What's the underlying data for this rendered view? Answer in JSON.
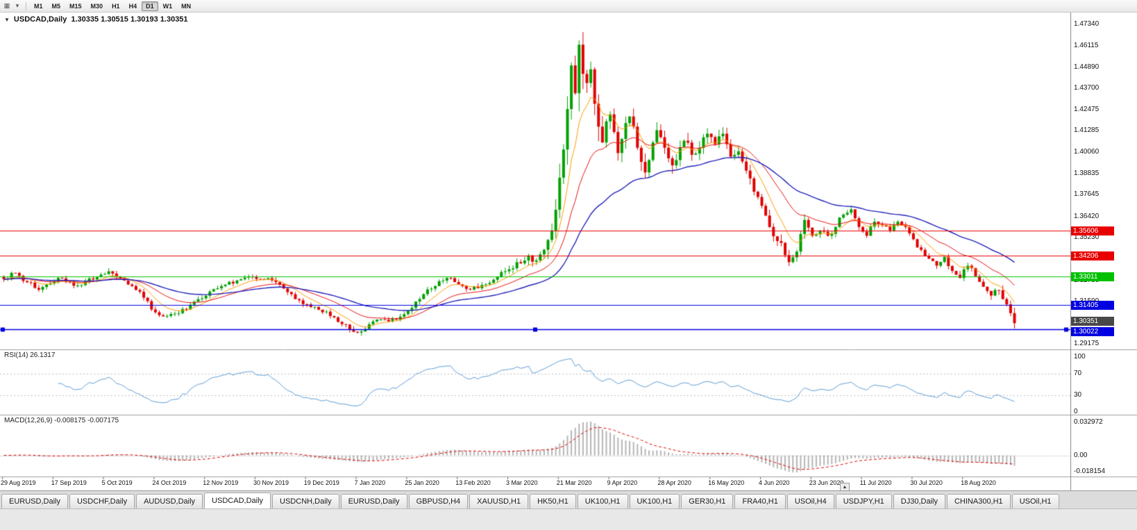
{
  "icons": {
    "chart": "▦",
    "dropdown": "▾",
    "scroll_up": "▲",
    "symbol_caret": "▼"
  },
  "toolbar": {
    "timeframes": [
      "M1",
      "M5",
      "M15",
      "M30",
      "H1",
      "H4",
      "D1",
      "W1",
      "MN"
    ],
    "active_timeframe": "D1"
  },
  "chart_header": {
    "symbol_label": "USDCAD,Daily",
    "ohlc": "1.30335 1.30515 1.30193 1.30351"
  },
  "tabs": {
    "items": [
      "EURUSD,Daily",
      "USDCHF,Daily",
      "AUDUSD,Daily",
      "USDCAD,Daily",
      "USDCNH,Daily",
      "EURUSD,Daily",
      "GBPUSD,H4",
      "XAUUSD,H1",
      "HK50,H1",
      "UK100,H1",
      "UK100,H1",
      "GER30,H1",
      "FRA40,H1",
      "USOil,H4",
      "USDJPY,H1",
      "DJ30,Daily",
      "CHINA300,H1",
      "USOil,H1"
    ],
    "active_index": 3
  },
  "chart_data": {
    "type": "candlestick",
    "symbol": "USDCAD",
    "timeframe": "Daily",
    "bar_count": 261,
    "bar_step": 5.6,
    "price_range": [
      1.289,
      1.4785
    ],
    "current_price": 1.30351,
    "current_price_label": "1.30351",
    "y_axis_ticks": [
      "1.47340",
      "1.46115",
      "1.44890",
      "1.43700",
      "1.42475",
      "1.41285",
      "1.40060",
      "1.38835",
      "1.37645",
      "1.36420",
      "1.35230",
      "1.34005",
      "1.32780",
      "1.31590",
      "1.29175"
    ],
    "x_labels": [
      "29 Aug 2019",
      "17 Sep 2019",
      "5 Oct 2019",
      "24 Oct 2019",
      "12 Nov 2019",
      "30 Nov 2019",
      "19 Dec 2019",
      "7 Jan 2020",
      "25 Jan 2020",
      "13 Feb 2020",
      "3 Mar 2020",
      "21 Mar 2020",
      "9 Apr 2020",
      "28 Apr 2020",
      "16 May 2020",
      "4 Jun 2020",
      "23 Jun 2020",
      "11 Jul 2020",
      "30 Jul 2020",
      "18 Aug 2020"
    ],
    "x_label_indices": [
      0,
      13,
      26,
      39,
      52,
      65,
      78,
      91,
      104,
      117,
      130,
      143,
      156,
      169,
      182,
      195,
      208,
      221,
      234,
      247
    ],
    "horizontal_lines": [
      {
        "price": 1.35606,
        "label": "1.35606",
        "color": "#e80000",
        "selected": false
      },
      {
        "price": 1.34206,
        "label": "1.34206",
        "color": "#e80000",
        "selected": false
      },
      {
        "price": 1.33011,
        "label": "1.33011",
        "color": "#00c000",
        "selected": false
      },
      {
        "price": 1.31405,
        "label": "1.31405",
        "color": "#0000e0",
        "selected": false
      },
      {
        "price": 1.30022,
        "label": "1.30022",
        "color": "#0000e0",
        "selected": true
      }
    ],
    "close_anchors": [
      [
        0,
        1.3285
      ],
      [
        3,
        1.332
      ],
      [
        6,
        1.3268
      ],
      [
        9,
        1.3225
      ],
      [
        12,
        1.3262
      ],
      [
        15,
        1.329
      ],
      [
        18,
        1.3248
      ],
      [
        21,
        1.3272
      ],
      [
        24,
        1.3298
      ],
      [
        27,
        1.333
      ],
      [
        30,
        1.329
      ],
      [
        33,
        1.3246
      ],
      [
        36,
        1.318
      ],
      [
        39,
        1.3097
      ],
      [
        42,
        1.3076
      ],
      [
        45,
        1.3092
      ],
      [
        48,
        1.314
      ],
      [
        51,
        1.3176
      ],
      [
        54,
        1.3228
      ],
      [
        57,
        1.3254
      ],
      [
        60,
        1.3278
      ],
      [
        63,
        1.33
      ],
      [
        66,
        1.3286
      ],
      [
        69,
        1.3278
      ],
      [
        72,
        1.3232
      ],
      [
        75,
        1.3172
      ],
      [
        78,
        1.3142
      ],
      [
        81,
        1.3112
      ],
      [
        84,
        1.3076
      ],
      [
        87,
        1.303
      ],
      [
        90,
        1.2986
      ],
      [
        93,
        1.3002
      ],
      [
        96,
        1.3056
      ],
      [
        99,
        1.3046
      ],
      [
        102,
        1.3072
      ],
      [
        105,
        1.3122
      ],
      [
        108,
        1.32
      ],
      [
        111,
        1.3246
      ],
      [
        114,
        1.3292
      ],
      [
        117,
        1.3256
      ],
      [
        120,
        1.3226
      ],
      [
        123,
        1.3252
      ],
      [
        126,
        1.3282
      ],
      [
        129,
        1.333
      ],
      [
        132,
        1.3382
      ],
      [
        135,
        1.342
      ],
      [
        137,
        1.3392
      ],
      [
        139,
        1.3452
      ],
      [
        141,
        1.3562
      ],
      [
        143,
        1.3862
      ],
      [
        144,
        1.4022
      ],
      [
        145,
        1.4252
      ],
      [
        146,
        1.45
      ],
      [
        147,
        1.4342
      ],
      [
        148,
        1.4618
      ],
      [
        149,
        1.4452
      ],
      [
        150,
        1.44
      ],
      [
        151,
        1.4478
      ],
      [
        152,
        1.4282
      ],
      [
        153,
        1.4152
      ],
      [
        154,
        1.4062
      ],
      [
        155,
        1.4182
      ],
      [
        156,
        1.4222
      ],
      [
        157,
        1.4122
      ],
      [
        158,
        1.4002
      ],
      [
        159,
        1.4082
      ],
      [
        160,
        1.4172
      ],
      [
        161,
        1.421
      ],
      [
        162,
        1.4152
      ],
      [
        163,
        1.4032
      ],
      [
        164,
        1.3952
      ],
      [
        165,
        1.3892
      ],
      [
        166,
        1.3962
      ],
      [
        167,
        1.4062
      ],
      [
        168,
        1.4132
      ],
      [
        169,
        1.4092
      ],
      [
        170,
        1.4032
      ],
      [
        171,
        1.3972
      ],
      [
        172,
        1.3932
      ],
      [
        173,
        1.3962
      ],
      [
        175,
        1.4072
      ],
      [
        177,
        1.3992
      ],
      [
        179,
        1.4032
      ],
      [
        181,
        1.4112
      ],
      [
        183,
        1.4052
      ],
      [
        185,
        1.4112
      ],
      [
        187,
        1.3982
      ],
      [
        189,
        1.4012
      ],
      [
        191,
        1.3902
      ],
      [
        193,
        1.3782
      ],
      [
        195,
        1.3702
      ],
      [
        197,
        1.3582
      ],
      [
        199,
        1.3502
      ],
      [
        201,
        1.3422
      ],
      [
        202,
        1.3382
      ],
      [
        204,
        1.3442
      ],
      [
        205,
        1.3542
      ],
      [
        206,
        1.3622
      ],
      [
        208,
        1.3532
      ],
      [
        210,
        1.3562
      ],
      [
        212,
        1.3532
      ],
      [
        214,
        1.3582
      ],
      [
        216,
        1.3652
      ],
      [
        218,
        1.3682
      ],
      [
        220,
        1.3582
      ],
      [
        222,
        1.3532
      ],
      [
        224,
        1.3612
      ],
      [
        226,
        1.3592
      ],
      [
        228,
        1.3562
      ],
      [
        230,
        1.3612
      ],
      [
        232,
        1.3582
      ],
      [
        234,
        1.3512
      ],
      [
        236,
        1.3452
      ],
      [
        238,
        1.3402
      ],
      [
        240,
        1.3362
      ],
      [
        242,
        1.3412
      ],
      [
        244,
        1.3332
      ],
      [
        246,
        1.3292
      ],
      [
        248,
        1.3362
      ],
      [
        250,
        1.3302
      ],
      [
        252,
        1.3242
      ],
      [
        254,
        1.3192
      ],
      [
        256,
        1.3222
      ],
      [
        257,
        1.3172
      ],
      [
        258,
        1.3142
      ],
      [
        259,
        1.3092
      ],
      [
        260,
        1.30351
      ]
    ],
    "volatility_anchors": [
      [
        0,
        0.0035
      ],
      [
        60,
        0.003
      ],
      [
        90,
        0.0034
      ],
      [
        120,
        0.0032
      ],
      [
        136,
        0.0055
      ],
      [
        141,
        0.011
      ],
      [
        145,
        0.019
      ],
      [
        150,
        0.019
      ],
      [
        154,
        0.014
      ],
      [
        159,
        0.011
      ],
      [
        166,
        0.0095
      ],
      [
        174,
        0.0085
      ],
      [
        184,
        0.007
      ],
      [
        194,
        0.0065
      ],
      [
        202,
        0.0075
      ],
      [
        207,
        0.006
      ],
      [
        212,
        0.0042
      ],
      [
        222,
        0.004
      ],
      [
        232,
        0.004
      ],
      [
        242,
        0.0038
      ],
      [
        250,
        0.0042
      ],
      [
        256,
        0.0048
      ],
      [
        260,
        0.0068
      ]
    ],
    "moving_averages": [
      {
        "name": "fast-ma",
        "period": 8,
        "color": "#ff9900"
      },
      {
        "name": "medium-ma",
        "period": 20,
        "color": "#e81010"
      },
      {
        "name": "slow-ma",
        "period": 45,
        "color": "#2222bb"
      }
    ],
    "indicators": {
      "rsi": {
        "label": "RSI(14) 26.1317",
        "period": 14,
        "current": 26.1317,
        "levels": [
          "100",
          "70",
          "30",
          "0"
        ],
        "color": "#5b9bd5"
      },
      "macd": {
        "label": "MACD(12,26,9) -0.008175 -0.007175",
        "fast": 12,
        "slow": 26,
        "signal": 9,
        "main_value": -0.008175,
        "signal_value": -0.007175,
        "axis_labels": [
          "0.032972",
          "0.00",
          "-0.018154"
        ],
        "range": [
          -0.0185,
          0.0335
        ],
        "hist_color": "#b4b4b4",
        "signal_color": "#e00000"
      }
    },
    "colors": {
      "up": "#00a000",
      "down": "#e00000",
      "axis_line": "#808080",
      "separator": "#9e9e9e",
      "level_dash": "#bbbbbb"
    }
  }
}
